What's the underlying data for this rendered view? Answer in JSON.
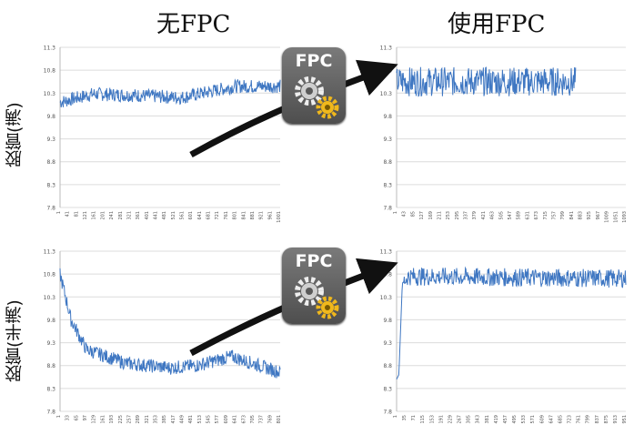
{
  "titles": {
    "left": "无FPC",
    "right": "使用FPC"
  },
  "row_labels": {
    "top": "胶管(满)",
    "bottom": "胶管(半满)"
  },
  "badge_text": "FPC",
  "colors": {
    "line": "#3f77c2",
    "grid": "#dcdcdc",
    "text": "#111111",
    "badge": "#5e5e5e",
    "gear_gold": "#f0b81c",
    "arrow": "#111111"
  },
  "chart_data": [
    {
      "id": "top-left",
      "type": "line",
      "title": "",
      "xlabel": "",
      "ylabel": "",
      "ylim": [
        7.8,
        11.3
      ],
      "yticks": [
        "11.3",
        "10.8",
        "10.3",
        "9.8",
        "9.3",
        "8.8",
        "8.3",
        "7.8"
      ],
      "xticks": [
        "1",
        "41",
        "81",
        "121",
        "161",
        "201",
        "241",
        "281",
        "321",
        "361",
        "401",
        "441",
        "481",
        "521",
        "561",
        "601",
        "641",
        "681",
        "721",
        "761",
        "801",
        "841",
        "881",
        "921",
        "961",
        "1001"
      ],
      "series": [
        {
          "x": [
            0,
            0.15,
            0.35,
            0.55,
            0.8,
            1.0
          ],
          "values": [
            10.1,
            10.28,
            10.25,
            10.2,
            10.45,
            10.45
          ]
        }
      ]
    },
    {
      "id": "top-right",
      "type": "line",
      "title": "",
      "xlabel": "",
      "ylabel": "",
      "ylim": [
        7.8,
        11.3
      ],
      "yticks": [
        "11.3",
        "10.8",
        "10.3",
        "9.8",
        "9.3",
        "8.8",
        "8.3",
        "7.8"
      ],
      "xticks": [
        "1",
        "43",
        "85",
        "127",
        "169",
        "211",
        "253",
        "295",
        "337",
        "379",
        "421",
        "463",
        "505",
        "547",
        "589",
        "631",
        "673",
        "715",
        "757",
        "799",
        "841",
        "883",
        "925",
        "967",
        "1009",
        "1051",
        "1093"
      ],
      "series": [
        {
          "x": [
            0,
            0.3,
            0.6,
            0.78
          ],
          "values": [
            10.55,
            10.55,
            10.55,
            10.55
          ]
        }
      ]
    },
    {
      "id": "bottom-left",
      "type": "line",
      "title": "",
      "xlabel": "",
      "ylabel": "",
      "ylim": [
        7.8,
        11.3
      ],
      "yticks": [
        "11.3",
        "10.8",
        "10.3",
        "9.8",
        "9.3",
        "8.8",
        "8.3",
        "7.8"
      ],
      "xticks": [
        "1",
        "33",
        "65",
        "97",
        "129",
        "161",
        "193",
        "225",
        "257",
        "289",
        "321",
        "353",
        "385",
        "417",
        "449",
        "481",
        "513",
        "545",
        "577",
        "609",
        "641",
        "673",
        "705",
        "737",
        "769",
        "801"
      ],
      "series": [
        {
          "x": [
            0,
            0.05,
            0.12,
            0.3,
            0.5,
            0.62,
            0.78,
            1.0
          ],
          "values": [
            10.8,
            9.8,
            9.15,
            8.85,
            8.75,
            8.8,
            9.0,
            8.65
          ]
        }
      ]
    },
    {
      "id": "bottom-right",
      "type": "line",
      "title": "",
      "xlabel": "",
      "ylabel": "",
      "ylim": [
        7.8,
        11.3
      ],
      "yticks": [
        "11.3",
        "10.8",
        "10.3",
        "9.8",
        "9.3",
        "8.8",
        "8.3",
        "7.8"
      ],
      "xticks": [
        "1",
        "35",
        "71",
        "115",
        "153",
        "191",
        "229",
        "267",
        "305",
        "343",
        "381",
        "419",
        "457",
        "495",
        "533",
        "571",
        "609",
        "647",
        "685",
        "723",
        "761",
        "799",
        "837",
        "875",
        "913",
        "951"
      ],
      "series": [
        {
          "x": [
            0,
            0.01,
            0.025,
            0.05,
            1.0
          ],
          "values": [
            8.5,
            8.6,
            10.6,
            10.75,
            10.7
          ]
        }
      ]
    }
  ]
}
